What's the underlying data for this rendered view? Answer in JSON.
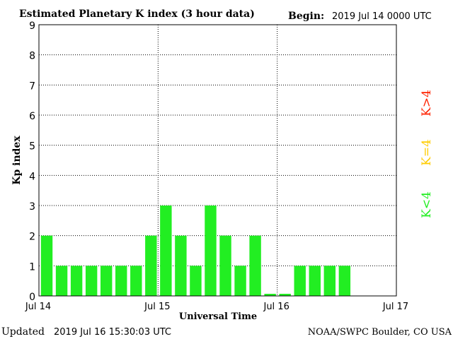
{
  "chart_data": {
    "type": "bar",
    "title": "Estimated Planetary K index (3 hour data)",
    "begin_label": "Begin:",
    "begin_value": "2019 Jul 14 0000 UTC",
    "ylabel": "Kp index",
    "xlabel": "Universal Time",
    "ylim": [
      0,
      9
    ],
    "yticks": [
      0,
      1,
      2,
      3,
      4,
      5,
      6,
      7,
      8,
      9
    ],
    "xlim_hours": [
      0,
      72
    ],
    "grid": true,
    "xticks": [
      {
        "label": "Jul 14",
        "hour": 0
      },
      {
        "label": "Jul 15",
        "hour": 24
      },
      {
        "label": "Jul 16",
        "hour": 48
      },
      {
        "label": "Jul 17",
        "hour": 72
      }
    ],
    "bar_interval_hours": 3,
    "values": [
      2,
      1,
      1,
      1,
      1,
      1,
      1,
      2,
      3,
      2,
      1,
      3,
      2,
      1,
      2,
      0.07,
      0.07,
      1,
      1,
      1,
      1
    ],
    "bar_color": "#22ee22",
    "legend": [
      {
        "text": "K<4",
        "color": "#22ee22"
      },
      {
        "text": "K=4",
        "color": "#ffcc00"
      },
      {
        "text": "K>4",
        "color": "#ff2200"
      }
    ],
    "legend_placement": "right, vertical"
  },
  "footer": {
    "updated_label": "Updated",
    "updated_value": "2019 Jul 16 15:30:03 UTC",
    "credit": "NOAA/SWPC Boulder, CO USA"
  }
}
